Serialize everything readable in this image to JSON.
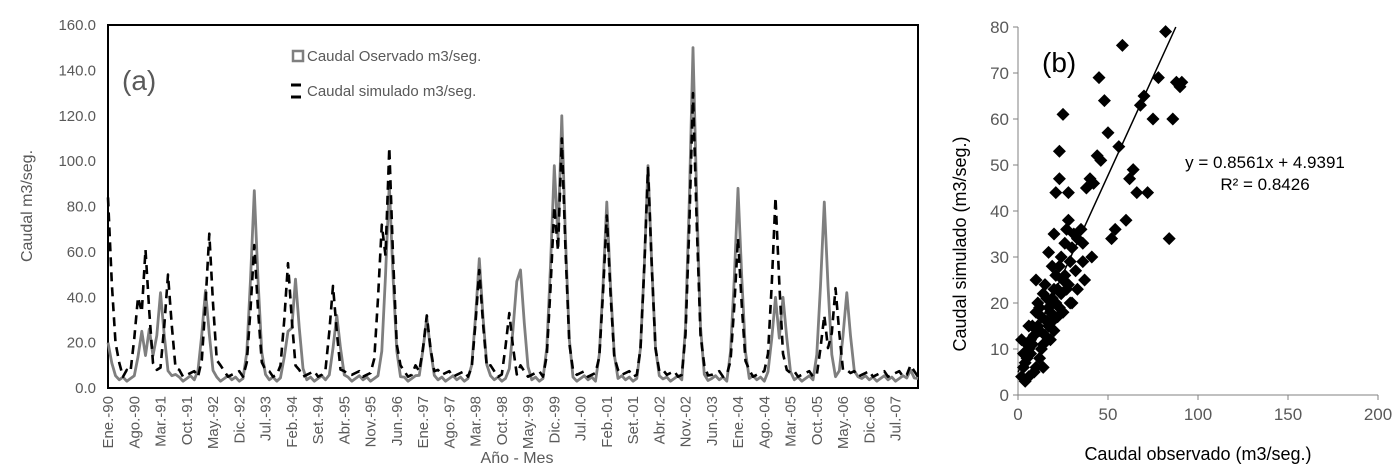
{
  "chart_data": [
    {
      "type": "line",
      "panel_label": "(a)",
      "xlabel": "Año - Mes",
      "ylabel": "Caudal m3/seg.",
      "ylim": [
        0,
        160
      ],
      "yticks": [
        "0.0",
        "20.0",
        "40.0",
        "60.0",
        "80.0",
        "100.0",
        "120.0",
        "140.0",
        "160.0"
      ],
      "categories": [
        "Ene.-90",
        "Ago.-90",
        "Mar.-91",
        "Oct.-91",
        "May.-92",
        "Dic.-92",
        "Jul.-93",
        "Feb.-94",
        "Set.-94",
        "Abr.-95",
        "Nov.-95",
        "Jun.-96",
        "Ene.-97",
        "Ago.-97",
        "Mar.-98",
        "Oct.-98",
        "May.-99",
        "Dic.-99",
        "Jul.-00",
        "Feb.-01",
        "Set.-01",
        "Abr.-02",
        "Nov.-02",
        "Jun.-03",
        "Ene.-04",
        "Ago.-04",
        "Mar.-05",
        "Oct.-05",
        "May.-06",
        "Dic.-06",
        "Jul.-07"
      ],
      "x_range_months": [
        0,
        216
      ],
      "grid": false,
      "legend_position": "top-center",
      "series": [
        {
          "name": "Caudal Oservado m3/seg.",
          "color": "#7f7f7f",
          "style": "solid",
          "peaks": [
            [
              0,
              20
            ],
            [
              9,
              25
            ],
            [
              11,
              26
            ],
            [
              14,
              42
            ],
            [
              18,
              6
            ],
            [
              26,
              43
            ],
            [
              29,
              2
            ],
            [
              39,
              87
            ],
            [
              42,
              6
            ],
            [
              48,
              25
            ],
            [
              50,
              48
            ],
            [
              52,
              6
            ],
            [
              61,
              32
            ],
            [
              64,
              3
            ],
            [
              75,
              90
            ],
            [
              78,
              5
            ],
            [
              85,
              31
            ],
            [
              88,
              2
            ],
            [
              99,
              57
            ],
            [
              102,
              3
            ],
            [
              109,
              47
            ],
            [
              110,
              52
            ],
            [
              113,
              3
            ],
            [
              119,
              98
            ],
            [
              121,
              120
            ],
            [
              124,
              4
            ],
            [
              133,
              82
            ],
            [
              136,
              4
            ],
            [
              144,
              98
            ],
            [
              148,
              4
            ],
            [
              156,
              150
            ],
            [
              159,
              6
            ],
            [
              168,
              88
            ],
            [
              171,
              4
            ],
            [
              178,
              40
            ],
            [
              180,
              40
            ],
            [
              182,
              6
            ],
            [
              191,
              82
            ],
            [
              194,
              5
            ],
            [
              197,
              42
            ],
            [
              200,
              5
            ],
            [
              214,
              8
            ]
          ]
        },
        {
          "name": "Caudal simulado m3/seg.",
          "color": "#000000",
          "style": "dashed",
          "peaks": [
            [
              0,
              84
            ],
            [
              2,
              20
            ],
            [
              5,
              8
            ],
            [
              8,
              40
            ],
            [
              10,
              61
            ],
            [
              13,
              8
            ],
            [
              16,
              50
            ],
            [
              19,
              8
            ],
            [
              22,
              6
            ],
            [
              27,
              68
            ],
            [
              30,
              10
            ],
            [
              39,
              63
            ],
            [
              42,
              8
            ],
            [
              48,
              55
            ],
            [
              51,
              8
            ],
            [
              60,
              45
            ],
            [
              64,
              6
            ],
            [
              73,
              72
            ],
            [
              75,
              106
            ],
            [
              78,
              10
            ],
            [
              82,
              10
            ],
            [
              85,
              32
            ],
            [
              88,
              8
            ],
            [
              99,
              52
            ],
            [
              102,
              10
            ],
            [
              107,
              33
            ],
            [
              110,
              10
            ],
            [
              117,
              8
            ],
            [
              119,
              80
            ],
            [
              121,
              110
            ],
            [
              124,
              8
            ],
            [
              133,
              76
            ],
            [
              136,
              8
            ],
            [
              144,
              97
            ],
            [
              148,
              8
            ],
            [
              156,
              130
            ],
            [
              159,
              10
            ],
            [
              168,
              66
            ],
            [
              171,
              8
            ],
            [
              178,
              84
            ],
            [
              181,
              8
            ],
            [
              191,
              32
            ],
            [
              194,
              44
            ],
            [
              197,
              8
            ],
            [
              214,
              10
            ]
          ]
        }
      ]
    },
    {
      "type": "scatter",
      "panel_label": "(b)",
      "xlabel": "Caudal observado (m3/seg.)",
      "ylabel": "Caudal simulado (m3/seg.)",
      "xlim": [
        0,
        200
      ],
      "ylim": [
        0,
        80
      ],
      "xticks": [
        "0",
        "50",
        "100",
        "150",
        "200"
      ],
      "yticks": [
        "0",
        "10",
        "20",
        "30",
        "40",
        "50",
        "60",
        "70",
        "80"
      ],
      "grid": false,
      "trendline": {
        "slope": 0.8561,
        "intercept": 4.9391,
        "equation": "y = 0.8561x + 4.9391",
        "r2": "R² = 0.8426"
      },
      "points": [
        [
          2,
          4
        ],
        [
          3,
          6
        ],
        [
          4,
          3
        ],
        [
          5,
          8
        ],
        [
          6,
          10
        ],
        [
          7,
          12
        ],
        [
          8,
          15
        ],
        [
          9,
          5
        ],
        [
          10,
          18
        ],
        [
          11,
          20
        ],
        [
          12,
          14
        ],
        [
          13,
          10
        ],
        [
          14,
          22
        ],
        [
          15,
          24
        ],
        [
          16,
          16
        ],
        [
          17,
          19
        ],
        [
          18,
          12
        ],
        [
          19,
          21
        ],
        [
          20,
          23
        ],
        [
          21,
          26
        ],
        [
          22,
          17
        ],
        [
          23,
          28
        ],
        [
          24,
          30
        ],
        [
          25,
          25
        ],
        [
          26,
          33
        ],
        [
          27,
          36
        ],
        [
          28,
          38
        ],
        [
          29,
          29
        ],
        [
          30,
          32
        ],
        [
          31,
          35
        ],
        [
          32,
          27
        ],
        [
          33,
          34
        ],
        [
          35,
          36
        ],
        [
          36,
          33
        ],
        [
          38,
          45
        ],
        [
          40,
          47
        ],
        [
          42,
          46
        ],
        [
          44,
          52
        ],
        [
          46,
          51
        ],
        [
          48,
          64
        ],
        [
          50,
          57
        ],
        [
          52,
          34
        ],
        [
          54,
          36
        ],
        [
          56,
          54
        ],
        [
          58,
          76
        ],
        [
          60,
          38
        ],
        [
          62,
          47
        ],
        [
          64,
          49
        ],
        [
          66,
          44
        ],
        [
          68,
          63
        ],
        [
          70,
          65
        ],
        [
          72,
          44
        ],
        [
          75,
          60
        ],
        [
          78,
          69
        ],
        [
          82,
          79
        ],
        [
          84,
          34
        ],
        [
          86,
          60
        ],
        [
          88,
          68
        ],
        [
          90,
          67
        ],
        [
          91,
          68
        ],
        [
          4,
          7
        ],
        [
          5,
          11
        ],
        [
          6,
          4
        ],
        [
          7,
          9
        ],
        [
          8,
          11
        ],
        [
          9,
          13
        ],
        [
          10,
          6
        ],
        [
          11,
          15
        ],
        [
          12,
          19
        ],
        [
          13,
          17
        ],
        [
          14,
          11
        ],
        [
          15,
          13
        ],
        [
          16,
          21
        ],
        [
          17,
          15
        ],
        [
          18,
          18
        ],
        [
          19,
          16
        ],
        [
          20,
          14
        ],
        [
          21,
          20
        ],
        [
          22,
          23
        ],
        [
          23,
          19
        ],
        [
          24,
          22
        ],
        [
          25,
          18
        ],
        [
          26,
          26
        ],
        [
          27,
          23
        ],
        [
          28,
          24
        ],
        [
          30,
          20
        ],
        [
          3,
          9
        ],
        [
          2,
          12
        ],
        [
          6,
          15
        ],
        [
          10,
          25
        ],
        [
          12,
          8
        ],
        [
          14,
          6
        ],
        [
          19,
          28
        ],
        [
          17,
          31
        ],
        [
          20,
          35
        ],
        [
          21,
          44
        ],
        [
          23,
          53
        ],
        [
          25,
          61
        ],
        [
          23,
          47
        ],
        [
          28,
          44
        ],
        [
          36,
          29
        ],
        [
          37,
          25
        ],
        [
          41,
          30
        ],
        [
          45,
          69
        ],
        [
          33,
          23
        ],
        [
          29,
          20
        ]
      ]
    }
  ],
  "legend": {
    "observed_label": "Caudal Oservado m3/seg.",
    "simulated_label": "Caudal simulado m3/seg."
  }
}
